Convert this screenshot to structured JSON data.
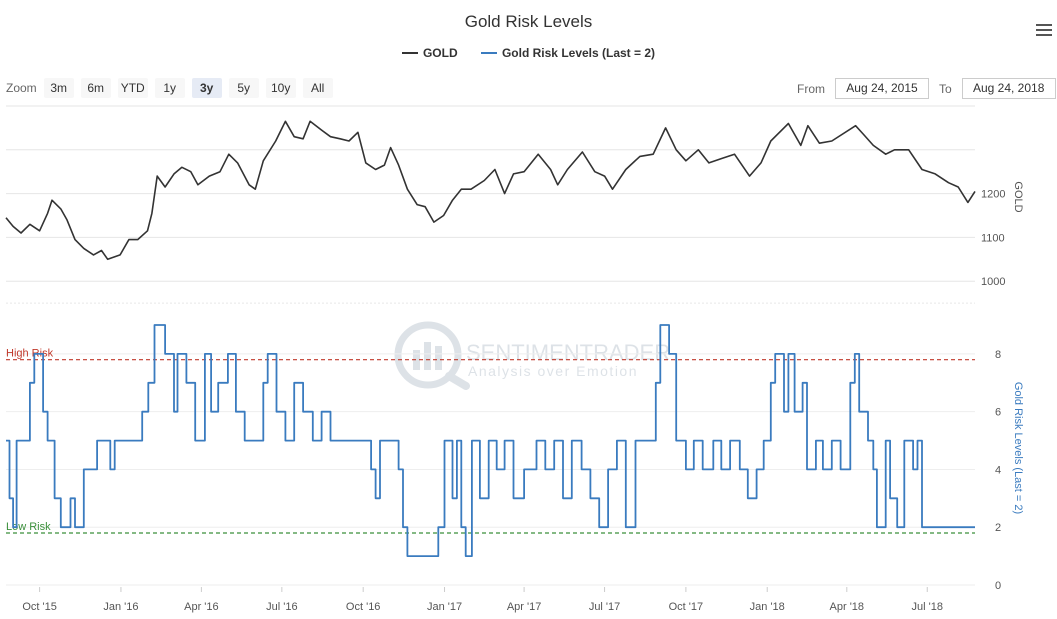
{
  "chart_data": {
    "type": "line",
    "title": "Gold Risk Levels",
    "legend": {
      "placement": "top-center",
      "items": [
        {
          "label": "GOLD",
          "color": "#333333"
        },
        {
          "label": "Gold Risk Levels (Last = 2)",
          "color": "#3a7bbf"
        }
      ]
    },
    "zoom": {
      "label": "Zoom",
      "buttons": [
        "3m",
        "6m",
        "YTD",
        "1y",
        "3y",
        "5y",
        "10y",
        "All"
      ],
      "selected": "3y"
    },
    "range": {
      "from_label": "From",
      "from_value": "Aug 24, 2015",
      "to_label": "To",
      "to_value": "Aug 24, 2018"
    },
    "x_range": [
      "2015-08-24",
      "2018-08-24"
    ],
    "x_ticks": [
      {
        "date": "2015-10-01",
        "label": "Oct '15"
      },
      {
        "date": "2016-01-01",
        "label": "Jan '16"
      },
      {
        "date": "2016-04-01",
        "label": "Apr '16"
      },
      {
        "date": "2016-07-01",
        "label": "Jul '16"
      },
      {
        "date": "2016-10-01",
        "label": "Oct '16"
      },
      {
        "date": "2017-01-01",
        "label": "Jan '17"
      },
      {
        "date": "2017-04-01",
        "label": "Apr '17"
      },
      {
        "date": "2017-07-01",
        "label": "Jul '17"
      },
      {
        "date": "2017-10-01",
        "label": "Oct '17"
      },
      {
        "date": "2018-01-01",
        "label": "Jan '18"
      },
      {
        "date": "2018-04-01",
        "label": "Apr '18"
      },
      {
        "date": "2018-07-01",
        "label": "Jul '18"
      }
    ],
    "gold_axis": {
      "title": "GOLD",
      "ylim": [
        900,
        1400
      ],
      "ticks": [
        1000,
        1100,
        1200
      ],
      "grid": true
    },
    "risk_axis": {
      "title": "Gold Risk Levels (Last = 2)",
      "ylim": [
        0,
        9
      ],
      "ticks": [
        0,
        2,
        4,
        6,
        8
      ],
      "grid": true
    },
    "thresholds": [
      {
        "label": "High Risk",
        "value": 7.8,
        "color": "#c0392b"
      },
      {
        "label": "Low Risk",
        "value": 1.8,
        "color": "#3a8f3a"
      }
    ],
    "watermark": {
      "name": "SENTIMENTRADER",
      "tagline": "Analysis over Emotion"
    },
    "series": [
      {
        "name": "GOLD",
        "color": "#333333",
        "points": [
          [
            "2015-08-24",
            1145
          ],
          [
            "2015-09-01",
            1125
          ],
          [
            "2015-09-10",
            1110
          ],
          [
            "2015-09-20",
            1130
          ],
          [
            "2015-10-01",
            1115
          ],
          [
            "2015-10-10",
            1155
          ],
          [
            "2015-10-15",
            1185
          ],
          [
            "2015-10-25",
            1165
          ],
          [
            "2015-11-01",
            1140
          ],
          [
            "2015-11-10",
            1095
          ],
          [
            "2015-11-20",
            1075
          ],
          [
            "2015-12-01",
            1060
          ],
          [
            "2015-12-10",
            1070
          ],
          [
            "2015-12-17",
            1050
          ],
          [
            "2015-12-31",
            1060
          ],
          [
            "2016-01-10",
            1095
          ],
          [
            "2016-01-20",
            1095
          ],
          [
            "2016-01-31",
            1115
          ],
          [
            "2016-02-05",
            1155
          ],
          [
            "2016-02-11",
            1240
          ],
          [
            "2016-02-20",
            1215
          ],
          [
            "2016-03-01",
            1245
          ],
          [
            "2016-03-10",
            1260
          ],
          [
            "2016-03-20",
            1250
          ],
          [
            "2016-03-28",
            1220
          ],
          [
            "2016-04-10",
            1240
          ],
          [
            "2016-04-22",
            1250
          ],
          [
            "2016-05-02",
            1290
          ],
          [
            "2016-05-12",
            1270
          ],
          [
            "2016-05-25",
            1220
          ],
          [
            "2016-06-01",
            1210
          ],
          [
            "2016-06-10",
            1275
          ],
          [
            "2016-06-24",
            1320
          ],
          [
            "2016-07-05",
            1365
          ],
          [
            "2016-07-15",
            1330
          ],
          [
            "2016-07-25",
            1325
          ],
          [
            "2016-08-02",
            1365
          ],
          [
            "2016-08-15",
            1345
          ],
          [
            "2016-08-25",
            1330
          ],
          [
            "2016-09-05",
            1325
          ],
          [
            "2016-09-15",
            1320
          ],
          [
            "2016-09-25",
            1340
          ],
          [
            "2016-10-04",
            1270
          ],
          [
            "2016-10-15",
            1255
          ],
          [
            "2016-10-25",
            1265
          ],
          [
            "2016-11-01",
            1305
          ],
          [
            "2016-11-10",
            1265
          ],
          [
            "2016-11-20",
            1210
          ],
          [
            "2016-12-01",
            1175
          ],
          [
            "2016-12-10",
            1170
          ],
          [
            "2016-12-20",
            1135
          ],
          [
            "2016-12-31",
            1150
          ],
          [
            "2017-01-10",
            1185
          ],
          [
            "2017-01-20",
            1210
          ],
          [
            "2017-01-31",
            1210
          ],
          [
            "2017-02-15",
            1230
          ],
          [
            "2017-02-27",
            1255
          ],
          [
            "2017-03-10",
            1200
          ],
          [
            "2017-03-20",
            1245
          ],
          [
            "2017-04-01",
            1250
          ],
          [
            "2017-04-17",
            1290
          ],
          [
            "2017-05-01",
            1255
          ],
          [
            "2017-05-09",
            1220
          ],
          [
            "2017-05-20",
            1255
          ],
          [
            "2017-06-06",
            1295
          ],
          [
            "2017-06-20",
            1250
          ],
          [
            "2017-07-01",
            1240
          ],
          [
            "2017-07-10",
            1210
          ],
          [
            "2017-07-25",
            1255
          ],
          [
            "2017-08-10",
            1285
          ],
          [
            "2017-08-25",
            1290
          ],
          [
            "2017-09-08",
            1350
          ],
          [
            "2017-09-20",
            1300
          ],
          [
            "2017-10-01",
            1275
          ],
          [
            "2017-10-15",
            1300
          ],
          [
            "2017-10-27",
            1270
          ],
          [
            "2017-11-10",
            1280
          ],
          [
            "2017-11-25",
            1290
          ],
          [
            "2017-12-12",
            1240
          ],
          [
            "2017-12-25",
            1270
          ],
          [
            "2018-01-05",
            1320
          ],
          [
            "2018-01-25",
            1360
          ],
          [
            "2018-02-08",
            1310
          ],
          [
            "2018-02-16",
            1355
          ],
          [
            "2018-03-01",
            1315
          ],
          [
            "2018-03-15",
            1320
          ],
          [
            "2018-04-11",
            1355
          ],
          [
            "2018-04-20",
            1335
          ],
          [
            "2018-05-01",
            1310
          ],
          [
            "2018-05-15",
            1290
          ],
          [
            "2018-05-25",
            1300
          ],
          [
            "2018-06-10",
            1300
          ],
          [
            "2018-06-25",
            1255
          ],
          [
            "2018-07-10",
            1245
          ],
          [
            "2018-07-25",
            1225
          ],
          [
            "2018-08-05",
            1215
          ],
          [
            "2018-08-16",
            1180
          ],
          [
            "2018-08-24",
            1205
          ]
        ]
      },
      {
        "name": "Gold Risk Levels (Last = 2)",
        "color": "#3a7bbf",
        "points": [
          [
            "2015-08-24",
            5
          ],
          [
            "2015-08-28",
            3
          ],
          [
            "2015-09-01",
            2
          ],
          [
            "2015-09-05",
            5
          ],
          [
            "2015-09-20",
            7
          ],
          [
            "2015-09-25",
            8
          ],
          [
            "2015-10-05",
            6
          ],
          [
            "2015-10-10",
            5
          ],
          [
            "2015-10-18",
            3
          ],
          [
            "2015-10-25",
            2
          ],
          [
            "2015-11-01",
            2
          ],
          [
            "2015-11-05",
            3
          ],
          [
            "2015-11-10",
            2
          ],
          [
            "2015-11-20",
            4
          ],
          [
            "2015-12-05",
            5
          ],
          [
            "2015-12-20",
            4
          ],
          [
            "2015-12-25",
            5
          ],
          [
            "2016-01-15",
            5
          ],
          [
            "2016-01-25",
            6
          ],
          [
            "2016-02-01",
            7
          ],
          [
            "2016-02-08",
            9
          ],
          [
            "2016-02-20",
            8
          ],
          [
            "2016-03-01",
            6
          ],
          [
            "2016-03-05",
            8
          ],
          [
            "2016-03-15",
            7
          ],
          [
            "2016-03-25",
            5
          ],
          [
            "2016-04-05",
            8
          ],
          [
            "2016-04-12",
            6
          ],
          [
            "2016-04-20",
            7
          ],
          [
            "2016-05-01",
            8
          ],
          [
            "2016-05-10",
            6
          ],
          [
            "2016-05-20",
            5
          ],
          [
            "2016-06-01",
            5
          ],
          [
            "2016-06-10",
            7
          ],
          [
            "2016-06-15",
            8
          ],
          [
            "2016-06-25",
            6
          ],
          [
            "2016-07-05",
            5
          ],
          [
            "2016-07-15",
            7
          ],
          [
            "2016-07-25",
            6
          ],
          [
            "2016-08-05",
            5
          ],
          [
            "2016-08-15",
            6
          ],
          [
            "2016-08-25",
            5
          ],
          [
            "2016-09-10",
            5
          ],
          [
            "2016-10-05",
            5
          ],
          [
            "2016-10-10",
            4
          ],
          [
            "2016-10-15",
            3
          ],
          [
            "2016-10-20",
            5
          ],
          [
            "2016-11-01",
            5
          ],
          [
            "2016-11-10",
            4
          ],
          [
            "2016-11-15",
            2
          ],
          [
            "2016-11-20",
            1
          ],
          [
            "2016-12-05",
            1
          ],
          [
            "2016-12-20",
            1
          ],
          [
            "2016-12-25",
            2
          ],
          [
            "2017-01-01",
            5
          ],
          [
            "2017-01-10",
            3
          ],
          [
            "2017-01-15",
            5
          ],
          [
            "2017-01-20",
            2
          ],
          [
            "2017-01-25",
            1
          ],
          [
            "2017-02-01",
            5
          ],
          [
            "2017-02-10",
            3
          ],
          [
            "2017-02-20",
            5
          ],
          [
            "2017-03-01",
            4
          ],
          [
            "2017-03-10",
            5
          ],
          [
            "2017-03-20",
            3
          ],
          [
            "2017-04-01",
            4
          ],
          [
            "2017-04-15",
            5
          ],
          [
            "2017-04-25",
            4
          ],
          [
            "2017-05-05",
            5
          ],
          [
            "2017-05-15",
            3
          ],
          [
            "2017-05-25",
            5
          ],
          [
            "2017-06-05",
            4
          ],
          [
            "2017-06-15",
            3
          ],
          [
            "2017-06-25",
            2
          ],
          [
            "2017-07-05",
            4
          ],
          [
            "2017-07-15",
            5
          ],
          [
            "2017-07-25",
            2
          ],
          [
            "2017-08-05",
            5
          ],
          [
            "2017-08-20",
            5
          ],
          [
            "2017-08-28",
            7
          ],
          [
            "2017-09-02",
            9
          ],
          [
            "2017-09-12",
            8
          ],
          [
            "2017-09-20",
            5
          ],
          [
            "2017-10-01",
            4
          ],
          [
            "2017-10-10",
            5
          ],
          [
            "2017-10-20",
            4
          ],
          [
            "2017-11-01",
            5
          ],
          [
            "2017-11-10",
            4
          ],
          [
            "2017-11-20",
            5
          ],
          [
            "2017-12-01",
            4
          ],
          [
            "2017-12-10",
            3
          ],
          [
            "2017-12-20",
            4
          ],
          [
            "2017-12-28",
            5
          ],
          [
            "2018-01-05",
            7
          ],
          [
            "2018-01-10",
            8
          ],
          [
            "2018-01-20",
            6
          ],
          [
            "2018-01-25",
            8
          ],
          [
            "2018-02-01",
            6
          ],
          [
            "2018-02-10",
            7
          ],
          [
            "2018-02-15",
            4
          ],
          [
            "2018-02-25",
            5
          ],
          [
            "2018-03-05",
            4
          ],
          [
            "2018-03-15",
            5
          ],
          [
            "2018-03-25",
            4
          ],
          [
            "2018-04-05",
            7
          ],
          [
            "2018-04-10",
            8
          ],
          [
            "2018-04-15",
            6
          ],
          [
            "2018-04-25",
            5
          ],
          [
            "2018-05-01",
            4
          ],
          [
            "2018-05-05",
            2
          ],
          [
            "2018-05-15",
            5
          ],
          [
            "2018-05-20",
            3
          ],
          [
            "2018-05-28",
            2
          ],
          [
            "2018-06-05",
            5
          ],
          [
            "2018-06-15",
            4
          ],
          [
            "2018-06-20",
            5
          ],
          [
            "2018-06-25",
            2
          ],
          [
            "2018-08-24",
            2
          ]
        ]
      }
    ]
  }
}
